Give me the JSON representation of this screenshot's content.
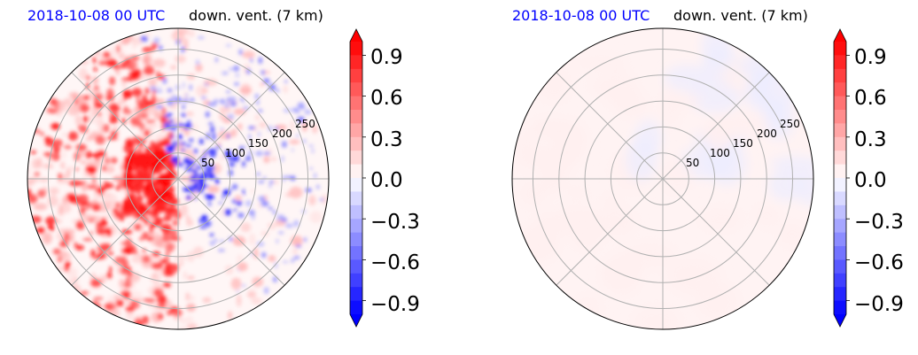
{
  "colors": {
    "positive": "#ff0000",
    "negative": "#0000ff",
    "title_date": "#0000ff",
    "grid": "#b0b0b0"
  },
  "chart_data": [
    {
      "type": "heatmap",
      "projection": "polar",
      "title_left": "2018-10-08 00 UTC",
      "title_right": "down. vent. (7 km)",
      "radial_ticks": [
        50,
        100,
        150,
        200,
        250
      ],
      "radial_max": 290,
      "angular_grid_deg": 45,
      "colormap": "bwr",
      "colorbar_ticks": [
        "0.9",
        "0.6",
        "0.3",
        "0.0",
        "−0.3",
        "−0.6",
        "−0.9"
      ],
      "colorbar_range": [
        -1.0,
        1.0
      ],
      "colorbar_extend": "both",
      "grid": true
    },
    {
      "type": "heatmap",
      "projection": "polar",
      "title_left": "2018-10-08 00 UTC",
      "title_right": "down. vent. (7 km)",
      "radial_ticks": [
        50,
        100,
        150,
        200,
        250
      ],
      "radial_max": 290,
      "angular_grid_deg": 45,
      "colormap": "bwr",
      "colorbar_ticks": [
        "0.9",
        "0.6",
        "0.3",
        "0.0",
        "−0.3",
        "−0.6",
        "−0.9"
      ],
      "colorbar_range": [
        -1.0,
        1.0
      ],
      "colorbar_extend": "both",
      "grid": true
    }
  ]
}
